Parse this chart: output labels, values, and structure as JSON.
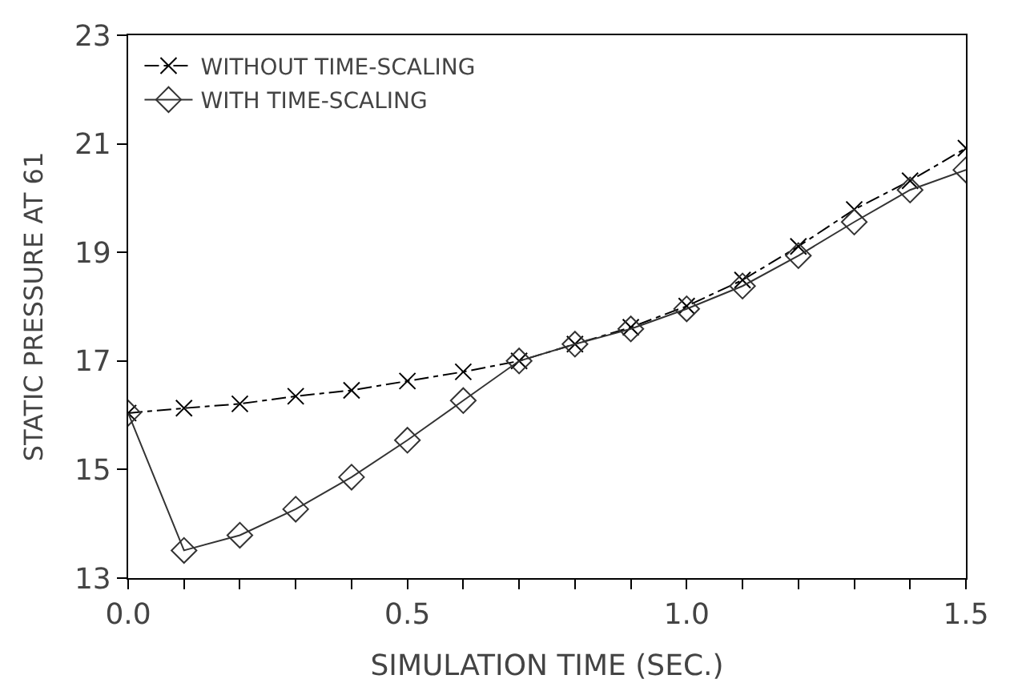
{
  "chart_data": {
    "type": "line",
    "xlabel": "SIMULATION TIME (SEC.)",
    "ylabel": "STATIC PRESSURE AT 61",
    "x": [
      0.0,
      0.1,
      0.2,
      0.3,
      0.4,
      0.5,
      0.6,
      0.7,
      0.8,
      0.9,
      1.0,
      1.1,
      1.2,
      1.3,
      1.4,
      1.5
    ],
    "series": [
      {
        "name": "WITHOUT TIME-SCALING",
        "color": "#000000",
        "marker": "cross",
        "line_style": "dashed",
        "values": [
          16.04,
          16.13,
          16.21,
          16.35,
          16.46,
          16.63,
          16.8,
          17.0,
          17.31,
          17.62,
          18.01,
          18.49,
          19.11,
          19.79,
          20.32,
          20.92
        ]
      },
      {
        "name": "WITH TIME-SCALING",
        "color": "#333333",
        "marker": "diamond",
        "line_style": "solid",
        "values": [
          16.04,
          13.51,
          13.79,
          14.27,
          14.86,
          15.54,
          16.27,
          17.0,
          17.31,
          17.59,
          17.96,
          18.38,
          18.94,
          19.56,
          20.15,
          20.52
        ]
      }
    ],
    "xlim": [
      0.0,
      1.5
    ],
    "xticks": [
      {
        "value": 0.0,
        "label": "0.0"
      },
      {
        "value": 0.1,
        "label": null
      },
      {
        "value": 0.2,
        "label": null
      },
      {
        "value": 0.3,
        "label": null
      },
      {
        "value": 0.4,
        "label": null
      },
      {
        "value": 0.5,
        "label": "0.5"
      },
      {
        "value": 0.6,
        "label": null
      },
      {
        "value": 0.7,
        "label": null
      },
      {
        "value": 0.8,
        "label": null
      },
      {
        "value": 0.9,
        "label": null
      },
      {
        "value": 1.0,
        "label": "1.0"
      },
      {
        "value": 1.1,
        "label": null
      },
      {
        "value": 1.2,
        "label": null
      },
      {
        "value": 1.3,
        "label": null
      },
      {
        "value": 1.4,
        "label": null
      },
      {
        "value": 1.5,
        "label": "1.5"
      }
    ],
    "ylim": [
      13,
      23
    ],
    "yticks": [
      13,
      15,
      17,
      19,
      21,
      23
    ],
    "legend": "top left"
  }
}
